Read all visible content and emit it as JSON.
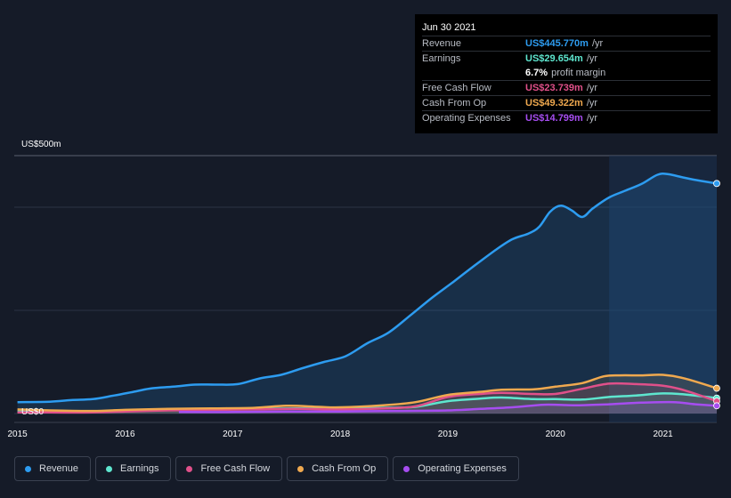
{
  "tooltip": {
    "date": "Jun 30 2021",
    "rows": [
      {
        "label": "Revenue",
        "value": "US$445.770m",
        "unit": "/yr",
        "color": "#2d9cf0"
      },
      {
        "label": "Earnings",
        "value": "US$29.654m",
        "unit": "/yr",
        "color": "#5ee6cf"
      },
      {
        "label": "",
        "value": "6.7%",
        "unit": "profit margin",
        "color": "#ffffff"
      },
      {
        "label": "Free Cash Flow",
        "value": "US$23.739m",
        "unit": "/yr",
        "color": "#e0508a"
      },
      {
        "label": "Cash From Op",
        "value": "US$49.322m",
        "unit": "/yr",
        "color": "#f0a94f"
      },
      {
        "label": "Operating Expenses",
        "value": "US$14.799m",
        "unit": "/yr",
        "color": "#a64df0"
      }
    ]
  },
  "legend": [
    {
      "label": "Revenue",
      "color": "#2d9cf0"
    },
    {
      "label": "Earnings",
      "color": "#5ee6cf"
    },
    {
      "label": "Free Cash Flow",
      "color": "#e0508a"
    },
    {
      "label": "Cash From Op",
      "color": "#f0a94f"
    },
    {
      "label": "Operating Expenses",
      "color": "#a64df0"
    }
  ],
  "chart_data": {
    "type": "line",
    "title": "",
    "xlabel": "",
    "ylabel": "",
    "y_max_label": "US$500m",
    "y_min_label": "US$0",
    "ylim": [
      0,
      500
    ],
    "xlim": [
      2014.97,
      2021.5
    ],
    "x_ticks": [
      "2015",
      "2016",
      "2017",
      "2018",
      "2019",
      "2020",
      "2021"
    ],
    "highlight_start": 2020.5,
    "series": [
      {
        "name": "Revenue",
        "color": "#2d9cf0",
        "x": [
          2015,
          2015.3,
          2015.5,
          2015.7,
          2015.9,
          2016.1,
          2016.25,
          2016.45,
          2016.65,
          2016.85,
          2017.05,
          2017.25,
          2017.45,
          2017.65,
          2017.85,
          2018.05,
          2018.25,
          2018.45,
          2018.65,
          2018.85,
          2019.05,
          2019.25,
          2019.45,
          2019.6,
          2019.75,
          2019.85,
          2019.95,
          2020.05,
          2020.15,
          2020.25,
          2020.35,
          2020.5,
          2020.65,
          2020.8,
          2020.95,
          2021.05,
          2021.2,
          2021.35,
          2021.5
        ],
        "values": [
          22,
          23,
          26,
          28,
          35,
          43,
          49,
          52,
          56,
          56,
          57,
          68,
          75,
          88,
          100,
          111,
          136,
          157,
          190,
          224,
          255,
          287,
          318,
          338,
          349,
          362,
          391,
          403,
          394,
          381,
          398,
          419,
          432,
          445,
          463,
          464,
          457,
          451,
          446
        ]
      },
      {
        "name": "Earnings",
        "color": "#5ee6cf",
        "x": [
          2015,
          2015.3,
          2015.7,
          2016,
          2016.4,
          2016.8,
          2017.2,
          2017.6,
          2018.0,
          2018.4,
          2018.7,
          2019.0,
          2019.3,
          2019.5,
          2019.8,
          2020.0,
          2020.25,
          2020.5,
          2020.75,
          2021.0,
          2021.2,
          2021.5
        ],
        "values": [
          4,
          3,
          3,
          6,
          8,
          9,
          9,
          10,
          9,
          11,
          13,
          24,
          29,
          31,
          28,
          28,
          27,
          32,
          35,
          39,
          37,
          30
        ]
      },
      {
        "name": "Free Cash Flow",
        "color": "#e0508a",
        "x": [
          2015,
          2015.3,
          2015.7,
          2016,
          2016.4,
          2016.8,
          2017.2,
          2017.6,
          2018.0,
          2018.4,
          2018.7,
          2019.0,
          2019.3,
          2019.5,
          2019.8,
          2020.0,
          2020.25,
          2020.5,
          2020.75,
          2021.0,
          2021.2,
          2021.5
        ],
        "values": [
          2,
          2,
          2,
          4,
          6,
          7,
          8,
          9,
          8,
          10,
          14,
          32,
          38,
          40,
          38,
          38,
          48,
          58,
          57,
          54,
          45,
          24
        ]
      },
      {
        "name": "Cash From Op",
        "color": "#f0a94f",
        "x": [
          2015,
          2015.3,
          2015.7,
          2016,
          2016.4,
          2016.8,
          2017.2,
          2017.5,
          2017.8,
          2018.0,
          2018.4,
          2018.7,
          2019.0,
          2019.3,
          2019.5,
          2019.8,
          2020.0,
          2020.25,
          2020.45,
          2020.6,
          2020.8,
          2021.0,
          2021.2,
          2021.5
        ],
        "values": [
          8,
          6,
          5,
          7,
          9,
          10,
          11,
          15,
          13,
          12,
          16,
          22,
          36,
          42,
          46,
          47,
          52,
          59,
          72,
          74,
          74,
          75,
          68,
          49
        ]
      },
      {
        "name": "Operating Expenses",
        "color": "#a64df0",
        "x": [
          2016.5,
          2017.0,
          2017.5,
          2018.0,
          2018.5,
          2019.0,
          2019.3,
          2019.6,
          2019.9,
          2020.2,
          2020.5,
          2020.8,
          2021.1,
          2021.3,
          2021.5
        ],
        "values": [
          3,
          3,
          4,
          4,
          5,
          6,
          9,
          12,
          17,
          16,
          18,
          21,
          22,
          18,
          15
        ]
      }
    ]
  }
}
